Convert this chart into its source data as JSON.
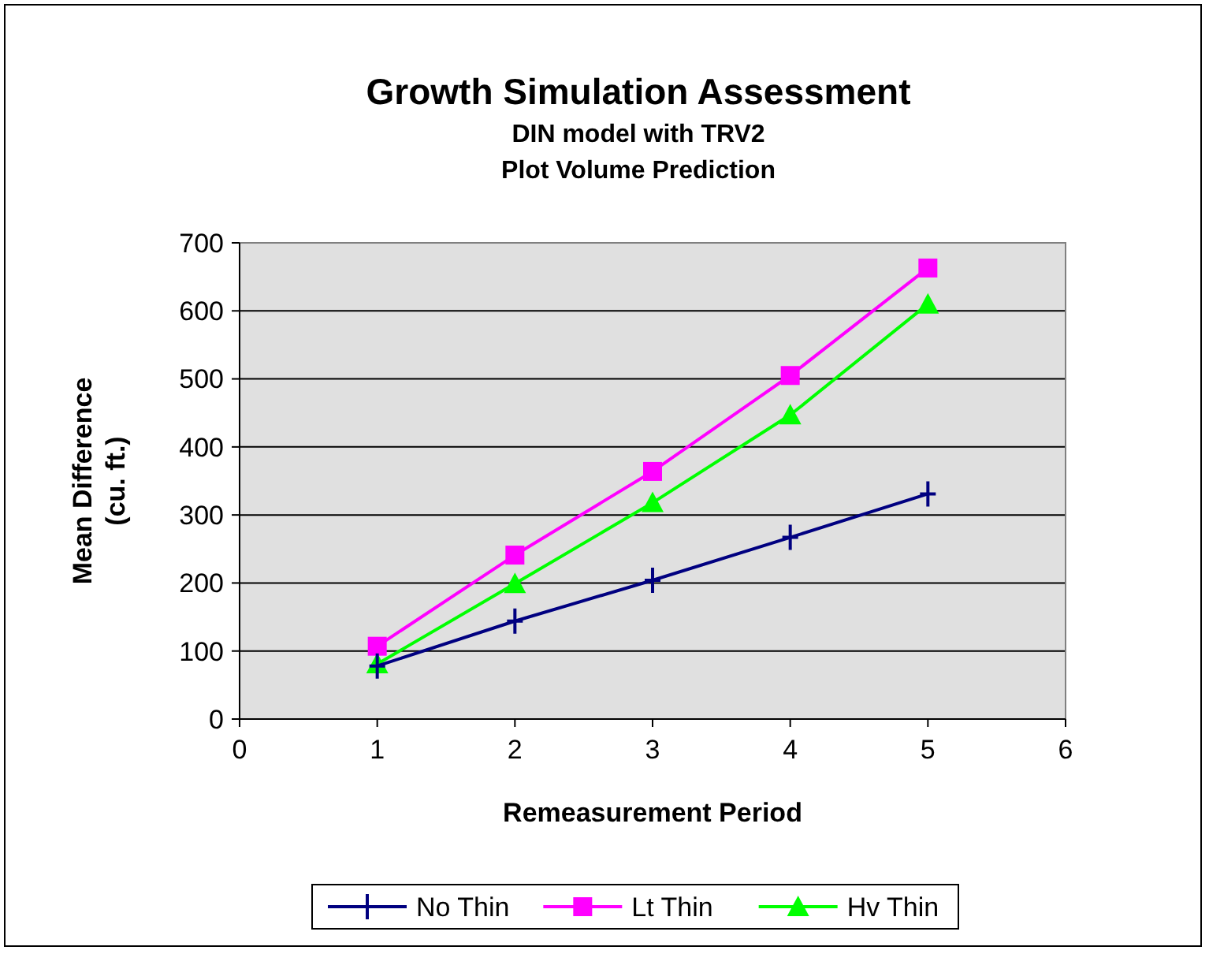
{
  "chart_data": {
    "type": "line",
    "title": "Growth Simulation Assessment",
    "subtitle": "DIN model with TRV2\nPlot Volume Prediction",
    "xlabel": "Remeasurement Period",
    "ylabel": "Mean Difference\n(cu. ft.)",
    "x": [
      1,
      2,
      3,
      4,
      5
    ],
    "series": [
      {
        "name": "No Thin",
        "color": "#000080",
        "marker": "cross",
        "values": [
          78,
          144,
          204,
          267,
          331
        ]
      },
      {
        "name": "Lt Thin",
        "color": "#ff00ff",
        "marker": "square",
        "values": [
          107,
          241,
          364,
          505,
          663
        ]
      },
      {
        "name": "Hv Thin",
        "color": "#00ff00",
        "marker": "triangle",
        "values": [
          81,
          199,
          318,
          447,
          610
        ]
      }
    ],
    "xlim": [
      0,
      6
    ],
    "xticks": [
      0,
      1,
      2,
      3,
      4,
      5,
      6
    ],
    "ylim": [
      0,
      700
    ],
    "yticks": [
      0,
      100,
      200,
      300,
      400,
      500,
      600,
      700
    ],
    "grid": "y",
    "legend": "bottom",
    "line_style": "solid"
  }
}
